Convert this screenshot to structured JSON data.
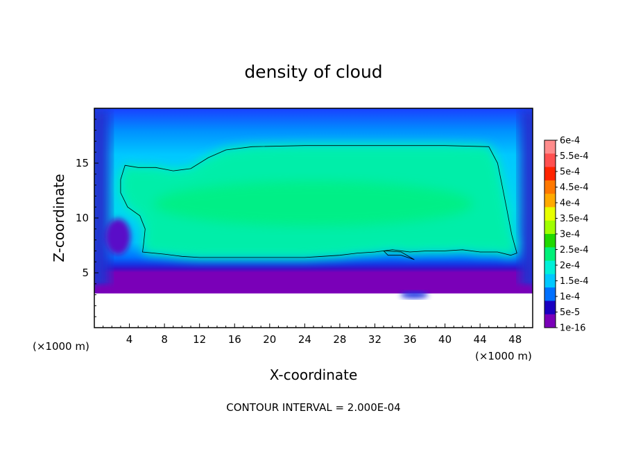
{
  "chart_data": {
    "type": "heatmap",
    "title": "density of cloud",
    "xlabel": "X-coordinate",
    "ylabel": "Z-coordinate",
    "x_unit": "(×1000 m)",
    "x_unit_right": "(×1000 m)",
    "xlim": [
      0,
      50
    ],
    "ylim": [
      0,
      20
    ],
    "x_ticks": [
      4,
      8,
      12,
      16,
      20,
      24,
      28,
      32,
      36,
      40,
      44,
      48
    ],
    "y_ticks": [
      5,
      10,
      15
    ],
    "contour_interval_text": "CONTOUR INTERVAL = 2.000E-04",
    "colorbar": {
      "labels": [
        "6e-4",
        "5.5e-4",
        "5e-4",
        "4.5e-4",
        "4e-4",
        "3.5e-4",
        "3e-4",
        "2.5e-4",
        "2e-4",
        "1.5e-4",
        "1e-4",
        "5e-5",
        "1e-16"
      ],
      "colors": [
        "#ff8c8c",
        "#ff5050",
        "#ff2400",
        "#ff7800",
        "#ffaa00",
        "#e8ff00",
        "#a0ff00",
        "#20d800",
        "#00f078",
        "#00f0d8",
        "#00c8ff",
        "#0070ff",
        "#1a00c0",
        "#7a00b8"
      ]
    },
    "field": {
      "cloud_base_z": 3.5,
      "cloud_top_z": 19.7,
      "core_value": "2e-4 to 2.5e-4",
      "contour_level": "2e-4",
      "contour_outline": [
        [
          3.5,
          14.8
        ],
        [
          5,
          14.6
        ],
        [
          7,
          14.6
        ],
        [
          9,
          14.3
        ],
        [
          11,
          14.5
        ],
        [
          13,
          15.5
        ],
        [
          15,
          16.2
        ],
        [
          18,
          16.5
        ],
        [
          24,
          16.6
        ],
        [
          32,
          16.6
        ],
        [
          40,
          16.6
        ],
        [
          45,
          16.5
        ],
        [
          46,
          15.0
        ],
        [
          46.5,
          13.0
        ],
        [
          47,
          11.0
        ],
        [
          47.6,
          8.5
        ],
        [
          48.2,
          6.8
        ],
        [
          47.5,
          6.6
        ],
        [
          46,
          6.9
        ],
        [
          44,
          6.9
        ],
        [
          42,
          7.1
        ],
        [
          40,
          7.0
        ],
        [
          38,
          7.0
        ],
        [
          36,
          6.9
        ],
        [
          34,
          7.1
        ],
        [
          33,
          7.0
        ],
        [
          32,
          6.9
        ],
        [
          30,
          6.8
        ],
        [
          28,
          6.6
        ],
        [
          26,
          6.5
        ],
        [
          24,
          6.4
        ],
        [
          22,
          6.4
        ],
        [
          19,
          6.4
        ],
        [
          17,
          6.4
        ],
        [
          14,
          6.4
        ],
        [
          12,
          6.4
        ],
        [
          10,
          6.5
        ],
        [
          8,
          6.7
        ],
        [
          5.5,
          6.9
        ],
        [
          5.6,
          7.5
        ],
        [
          5.8,
          9.0
        ],
        [
          5.2,
          10.2
        ],
        [
          3.8,
          11.0
        ],
        [
          3.0,
          12.3
        ],
        [
          3.0,
          13.5
        ],
        [
          3.5,
          14.8
        ]
      ],
      "small_contour": [
        [
          33,
          7.0
        ],
        [
          35,
          6.9
        ],
        [
          36.5,
          6.2
        ],
        [
          35,
          6.6
        ],
        [
          33.5,
          6.6
        ]
      ],
      "bands": [
        {
          "range": "1e-16 to 5e-5",
          "color": "#7a00b8"
        },
        {
          "range": "5e-5 to 1e-4",
          "color": "#1a00c0"
        },
        {
          "range": "1e-4 to 1.5e-4",
          "color": "#0070ff"
        },
        {
          "range": "1.5e-4 to 2e-4",
          "color": "#00c8ff"
        },
        {
          "range": "2e-4 to 2.5e-4",
          "color": "#00f0d8"
        },
        {
          "range": "2.5e-4 to 3e-4",
          "color": "#00f078"
        }
      ]
    }
  }
}
